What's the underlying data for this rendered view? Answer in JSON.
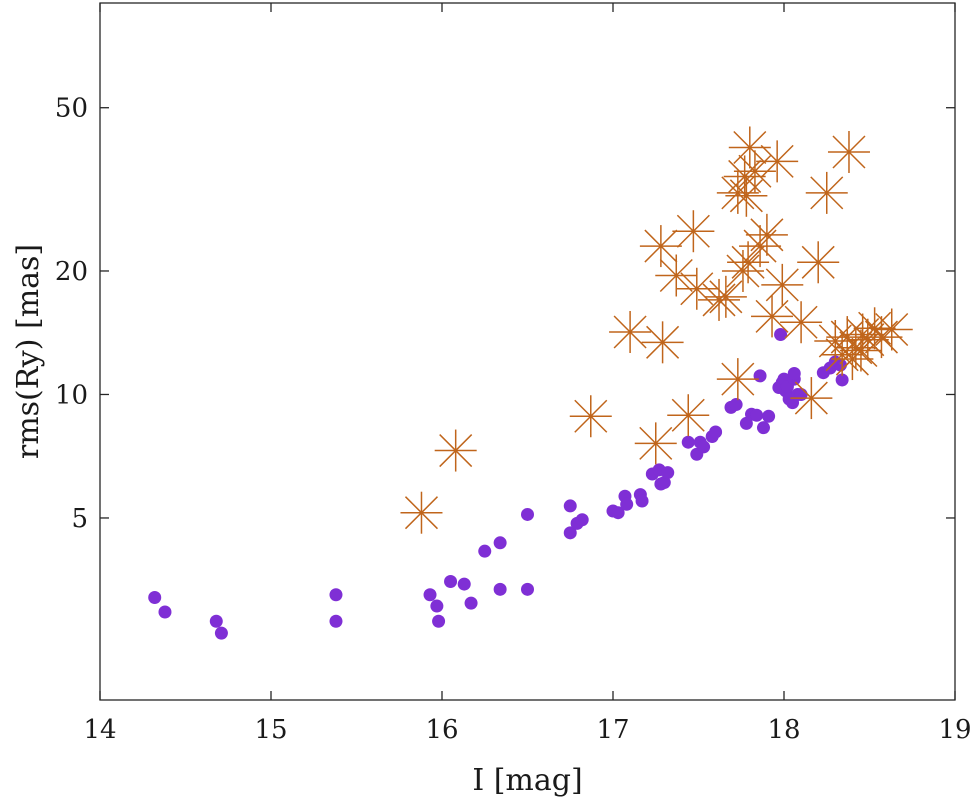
{
  "chart_data": {
    "type": "scatter",
    "title": "",
    "xlabel": "I [mag]",
    "ylabel": "rms(Ry) [mas]",
    "xlim": [
      14,
      19
    ],
    "ylim": [
      1.8,
      90
    ],
    "yscale": "log",
    "grid": false,
    "legend": "none",
    "xticks": [
      14,
      15,
      16,
      17,
      18,
      19
    ],
    "xtick_labels": [
      "14",
      "15",
      "16",
      "17",
      "18",
      "19"
    ],
    "yticks": [
      5,
      10,
      20,
      50
    ],
    "ytick_labels": [
      "5",
      "10",
      "20",
      "50"
    ],
    "series": [
      {
        "marker": "dot",
        "color": "#7f2fd5",
        "points": [
          [
            14.32,
            3.2
          ],
          [
            14.38,
            2.95
          ],
          [
            14.68,
            2.8
          ],
          [
            14.71,
            2.62
          ],
          [
            15.38,
            3.25
          ],
          [
            15.38,
            2.8
          ],
          [
            15.93,
            3.25
          ],
          [
            15.97,
            3.05
          ],
          [
            15.98,
            2.8
          ],
          [
            16.05,
            3.5
          ],
          [
            16.13,
            3.45
          ],
          [
            16.17,
            3.1
          ],
          [
            16.25,
            4.15
          ],
          [
            16.34,
            4.35
          ],
          [
            16.34,
            3.35
          ],
          [
            16.5,
            5.1
          ],
          [
            16.5,
            3.35
          ],
          [
            16.75,
            5.35
          ],
          [
            16.75,
            4.6
          ],
          [
            16.79,
            4.85
          ],
          [
            16.82,
            4.95
          ],
          [
            17.0,
            5.2
          ],
          [
            17.03,
            5.15
          ],
          [
            17.07,
            5.65
          ],
          [
            17.08,
            5.4
          ],
          [
            17.16,
            5.7
          ],
          [
            17.17,
            5.5
          ],
          [
            17.23,
            6.4
          ],
          [
            17.27,
            6.55
          ],
          [
            17.28,
            6.05
          ],
          [
            17.3,
            6.1
          ],
          [
            17.32,
            6.45
          ],
          [
            17.44,
            7.65
          ],
          [
            17.49,
            7.15
          ],
          [
            17.51,
            7.65
          ],
          [
            17.53,
            7.45
          ],
          [
            17.58,
            7.9
          ],
          [
            17.6,
            8.1
          ],
          [
            17.69,
            9.3
          ],
          [
            17.72,
            9.45
          ],
          [
            17.78,
            8.5
          ],
          [
            17.81,
            8.95
          ],
          [
            17.84,
            8.9
          ],
          [
            17.86,
            11.1
          ],
          [
            17.88,
            8.3
          ],
          [
            17.91,
            8.85
          ],
          [
            17.97,
            10.4
          ],
          [
            17.98,
            14.0
          ],
          [
            17.99,
            10.7
          ],
          [
            18.0,
            10.9
          ],
          [
            18.01,
            10.2
          ],
          [
            18.02,
            10.45
          ],
          [
            18.03,
            9.75
          ],
          [
            18.05,
            9.55
          ],
          [
            18.06,
            10.9
          ],
          [
            18.06,
            11.25
          ],
          [
            18.08,
            10.0
          ],
          [
            18.1,
            10.0
          ],
          [
            18.23,
            11.3
          ],
          [
            18.27,
            11.6
          ],
          [
            18.3,
            12.0
          ],
          [
            18.33,
            11.8
          ],
          [
            18.34,
            10.85
          ]
        ]
      },
      {
        "marker": "asterisk",
        "color": "#c0651b",
        "points": [
          [
            15.88,
            5.15
          ],
          [
            16.08,
            7.3
          ],
          [
            16.87,
            8.85
          ],
          [
            17.1,
            14.2
          ],
          [
            17.25,
            7.6
          ],
          [
            17.28,
            23.0
          ],
          [
            17.29,
            13.4
          ],
          [
            17.37,
            19.5
          ],
          [
            17.44,
            8.9
          ],
          [
            17.47,
            25.0
          ],
          [
            17.49,
            18.1
          ],
          [
            17.62,
            17.0
          ],
          [
            17.66,
            17.3
          ],
          [
            17.73,
            10.9
          ],
          [
            17.73,
            31.0
          ],
          [
            17.76,
            20.0
          ],
          [
            17.77,
            34.0
          ],
          [
            17.78,
            30.5
          ],
          [
            17.79,
            21.0
          ],
          [
            17.8,
            40.0
          ],
          [
            17.83,
            35.0
          ],
          [
            17.86,
            23.0
          ],
          [
            17.9,
            24.5
          ],
          [
            17.93,
            15.5
          ],
          [
            17.96,
            37.0
          ],
          [
            17.99,
            18.5
          ],
          [
            18.1,
            15.0
          ],
          [
            18.16,
            9.8
          ],
          [
            18.2,
            21.0
          ],
          [
            18.25,
            31.0
          ],
          [
            18.3,
            13.5
          ],
          [
            18.34,
            12.5
          ],
          [
            18.37,
            13.8
          ],
          [
            18.38,
            39.0
          ],
          [
            18.4,
            12.2
          ],
          [
            18.42,
            13.0
          ],
          [
            18.45,
            12.8
          ],
          [
            18.46,
            14.0
          ],
          [
            18.49,
            13.6
          ],
          [
            18.53,
            14.5
          ],
          [
            18.57,
            13.8
          ],
          [
            18.63,
            14.4
          ]
        ]
      }
    ]
  }
}
